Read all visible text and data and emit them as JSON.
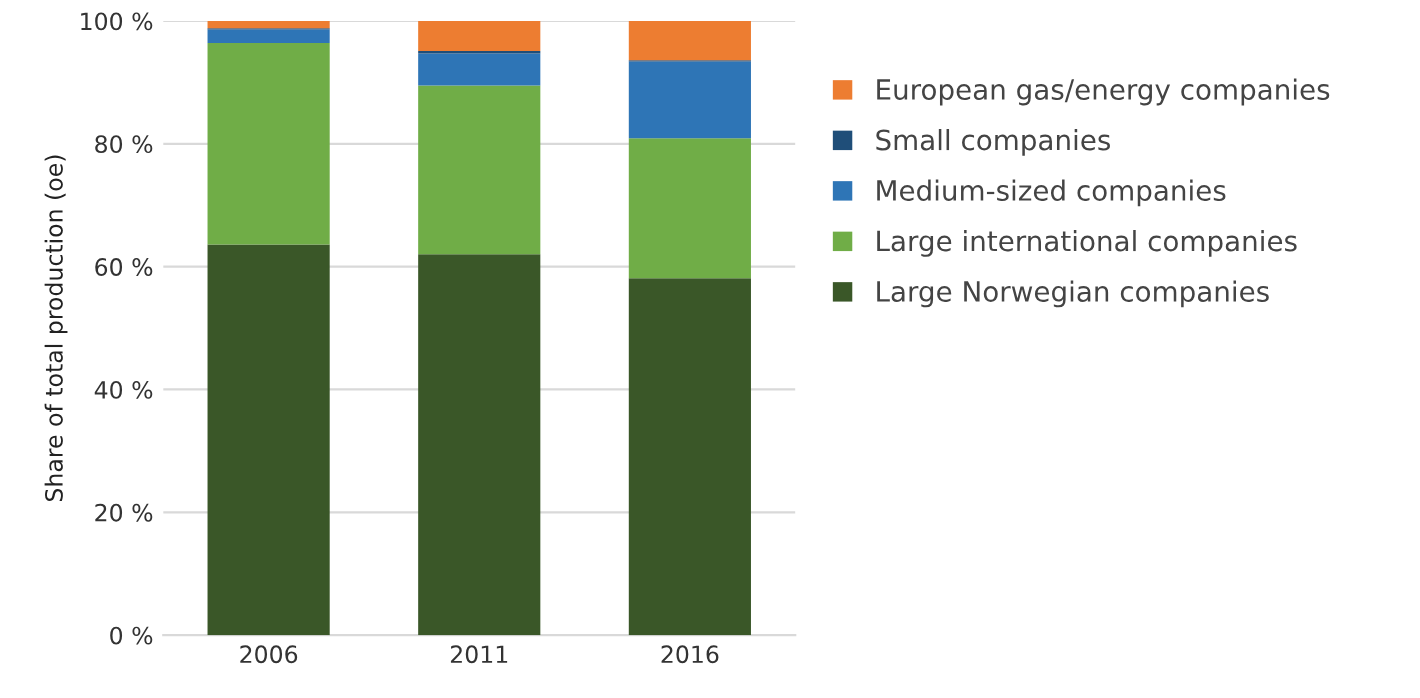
{
  "chart_data": {
    "type": "bar",
    "stacked": true,
    "ylabel": "Share of total production (oe)",
    "categories": [
      "2006",
      "2011",
      "2016"
    ],
    "series": [
      {
        "name": "Large Norwegian companies",
        "color": "#3a5728",
        "values": [
          63.6,
          62.0,
          58.1
        ]
      },
      {
        "name": "Large international companies",
        "color": "#70ad47",
        "values": [
          32.8,
          27.5,
          22.8
        ]
      },
      {
        "name": "Medium-sized companies",
        "color": "#2e75b6",
        "values": [
          2.2,
          5.2,
          12.5
        ]
      },
      {
        "name": "Small companies",
        "color": "#1f4e79",
        "values": [
          0.2,
          0.4,
          0.2
        ]
      },
      {
        "name": "European gas/energy companies",
        "color": "#ed7d31",
        "values": [
          1.2,
          4.9,
          6.4
        ]
      }
    ],
    "ylim": [
      0,
      100
    ],
    "yticks": [
      {
        "value": 0,
        "label": "0 %"
      },
      {
        "value": 20,
        "label": "20 %"
      },
      {
        "value": 40,
        "label": "40 %"
      },
      {
        "value": 60,
        "label": "60 %"
      },
      {
        "value": 80,
        "label": "80 %"
      },
      {
        "value": 100,
        "label": "100 %"
      }
    ],
    "grid": "y",
    "legend": "right"
  }
}
